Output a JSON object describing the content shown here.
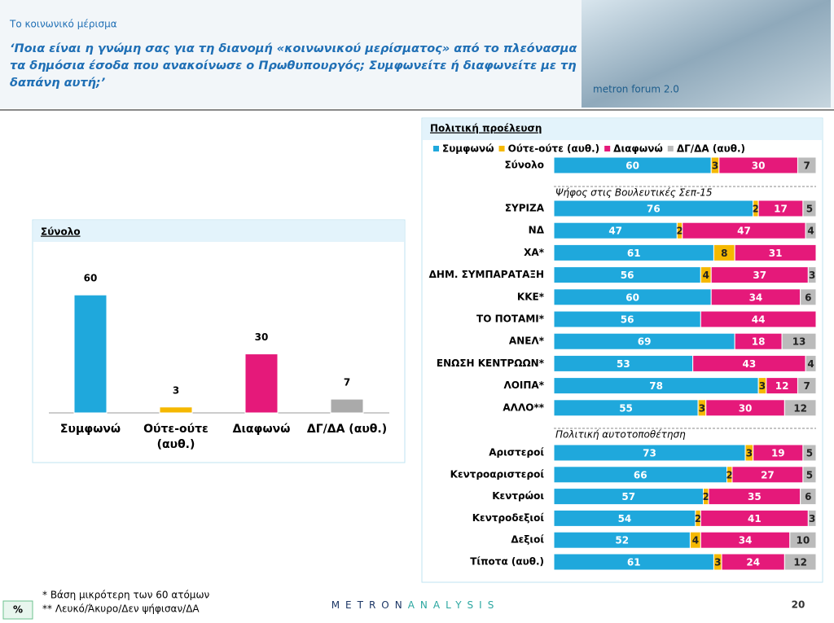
{
  "header": {
    "title": "Το κοινωνικό μέρισμα",
    "subtitle": "‘Ποια είναι η γνώμη σας για τη διανομή «κοινωνικού μερίσματος» από το πλεόνασμα τα δημόσια έσοδα που ανακοίνωσε ο Πρωθυπουργός; Συμφωνείτε ή διαφωνείτε με τη δαπάνη αυτή;’",
    "logo": "metron forum 2.0"
  },
  "chart_data": [
    {
      "type": "bar",
      "title": "Σύνολο",
      "categories": [
        "Συμφωνώ",
        "Ούτε-ούτε (αυθ.)",
        "Διαφωνώ",
        "ΔΓ/ΔΑ (αυθ.)"
      ],
      "values": [
        60,
        3,
        30,
        7
      ],
      "colors": [
        "#1fa8dc",
        "#f5b800",
        "#e5197a",
        "#aaaaaa"
      ],
      "ylim": [
        0,
        70
      ]
    },
    {
      "type": "stacked-bar",
      "orientation": "horizontal",
      "title": "Πολιτική προέλευση",
      "xlim": [
        0,
        100
      ],
      "categories": [
        "Σύνολο",
        "ΣΥΡΙΖΑ",
        "ΝΔ",
        "ΧΑ*",
        "ΔΗΜ. ΣΥΜΠΑΡΑΤΑΞΗ",
        "ΚΚΕ*",
        "ΤΟ ΠΟΤΑΜΙ*",
        "ΑΝΕΛ*",
        "ΕΝΩΣΗ ΚΕΝΤΡΩΩΝ*",
        "ΛΟΙΠΑ*",
        "ΑΛΛΟ**",
        "Αριστεροί",
        "Κεντροαριστεροί",
        "Κεντρώοι",
        "Κεντροδεξιοί",
        "Δεξιοί",
        "Τίποτα (αυθ.)"
      ],
      "series": [
        {
          "name": "Συμφωνώ",
          "color": "#1fa8dc",
          "values": [
            60,
            76,
            47,
            61,
            56,
            60,
            56,
            69,
            53,
            78,
            55,
            73,
            66,
            57,
            54,
            52,
            61
          ]
        },
        {
          "name": "Ούτε-ούτε (αυθ.)",
          "color": "#f5b800",
          "values": [
            3,
            2,
            2,
            8,
            4,
            null,
            null,
            null,
            null,
            3,
            3,
            3,
            2,
            2,
            2,
            4,
            3
          ]
        },
        {
          "name": "Διαφωνώ",
          "color": "#e5197a",
          "values": [
            30,
            17,
            47,
            31,
            37,
            34,
            44,
            18,
            43,
            12,
            30,
            19,
            27,
            35,
            41,
            34,
            24
          ]
        },
        {
          "name": "ΔΓ/ΔΑ (αυθ.)",
          "color": "#bbbbbb",
          "values": [
            7,
            5,
            4,
            null,
            3,
            6,
            null,
            13,
            4,
            7,
            12,
            5,
            5,
            6,
            3,
            10,
            12
          ]
        }
      ],
      "annotations": [
        "Ψήφος στις Βουλευτικές Σεπ-15",
        "Πολιτική αυτοτοποθέτηση"
      ]
    }
  ],
  "footer": {
    "unit": "%",
    "notes": [
      "*  Βάση μικρότερη των 60 ατόμων",
      "** Λευκό/Άκυρο/Δεν ψήφισαν/ΔΑ"
    ],
    "brand": [
      "METRON",
      "ANALYSIS"
    ],
    "page": "20"
  }
}
